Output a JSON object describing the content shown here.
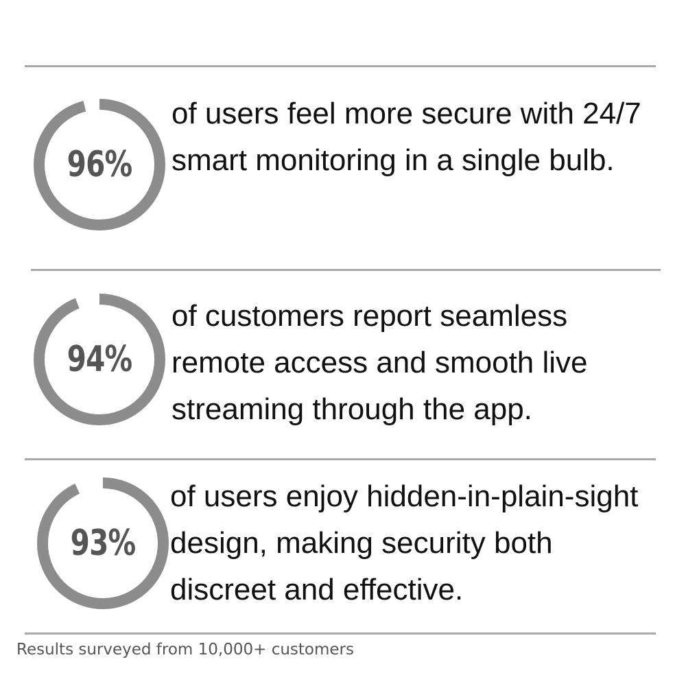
{
  "chart_data": {
    "type": "pie",
    "stats": [
      {
        "percent_label": "96%",
        "value": 96,
        "description": "of users feel more secure with 24/7 smart monitoring in a single bulb."
      },
      {
        "percent_label": "94%",
        "value": 94,
        "description": "of customers report seamless remote access and smooth live streaming through the app."
      },
      {
        "percent_label": "93%",
        "value": 93,
        "description": "of users enjoy hidden-in-plain-sight design, making security both discreet and effective."
      }
    ],
    "ring_color": "#8c8c8c",
    "percent_color": "#555555"
  },
  "footer": {
    "note": "Results surveyed from 10,000+ customers"
  },
  "colors": {
    "divider": "#a8a8a8",
    "text": "#111111"
  }
}
